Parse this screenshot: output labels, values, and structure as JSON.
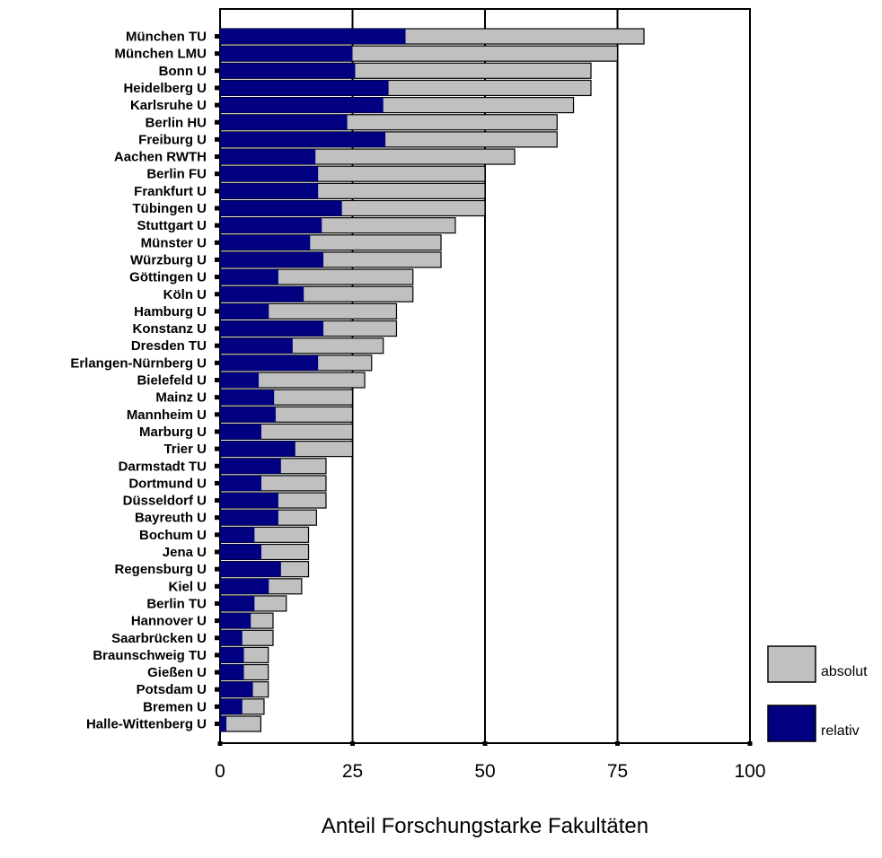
{
  "chart_data": {
    "type": "bar",
    "orientation": "horizontal",
    "stacked": "overlay",
    "categories": [
      "München TU",
      "München LMU",
      "Bonn U",
      "Heidelberg U",
      "Karlsruhe U",
      "Berlin HU",
      "Freiburg U",
      "Aachen RWTH",
      "Berlin FU",
      "Frankfurt U",
      "Tübingen U",
      "Stuttgart U",
      "Münster U",
      "Würzburg U",
      "Göttingen U",
      "Köln U",
      "Hamburg U",
      "Konstanz U",
      "Dresden TU",
      "Erlangen-Nürnberg U",
      "Bielefeld U",
      "Mainz U",
      "Mannheim U",
      "Marburg U",
      "Trier U",
      "Darmstadt TU",
      "Dortmund U",
      "Düsseldorf U",
      "Bayreuth U",
      "Bochum U",
      "Jena U",
      "Regensburg U",
      "Kiel U",
      "Berlin TU",
      "Hannover U",
      "Saarbrücken U",
      "Braunschweig TU",
      "Gießen U",
      "Potsdam U",
      "Bremen U",
      "Halle-Wittenberg U"
    ],
    "series": [
      {
        "name": "absolut",
        "color": "#c0c0c0",
        "values": [
          80,
          75,
          70,
          70,
          66.7,
          63.6,
          63.6,
          55.6,
          50,
          50,
          50,
          44.4,
          41.7,
          41.7,
          36.4,
          36.4,
          33.3,
          33.3,
          30.8,
          28.6,
          27.3,
          25,
          25,
          25,
          25,
          20,
          20,
          20,
          18.2,
          16.7,
          16.7,
          16.7,
          15.4,
          12.5,
          10,
          10,
          9.1,
          9.1,
          9.1,
          8.3,
          7.7
        ]
      },
      {
        "name": "relativ",
        "color": "#000080",
        "values": [
          35,
          25,
          25.5,
          31.8,
          30.8,
          24,
          31.2,
          18,
          18.5,
          18.5,
          23,
          19.2,
          17,
          19.5,
          11,
          15.8,
          9.2,
          19.5,
          13.7,
          18.5,
          7.3,
          10.2,
          10.5,
          7.8,
          14.2,
          11.5,
          7.8,
          11,
          11,
          6.5,
          7.8,
          11.5,
          9.2,
          6.5,
          5.8,
          4.2,
          4.5,
          4.5,
          6.2,
          4.2,
          1.2
        ]
      }
    ],
    "xlim": [
      0,
      100
    ],
    "xticks": [
      "0",
      "25",
      "50",
      "75",
      "100"
    ],
    "xlabel": "Anteil Forschungstarke Fakultäten",
    "ylabel": "",
    "grid": "vertical gridlines at 25, 50, 75",
    "legend_position": "bottom-right"
  }
}
